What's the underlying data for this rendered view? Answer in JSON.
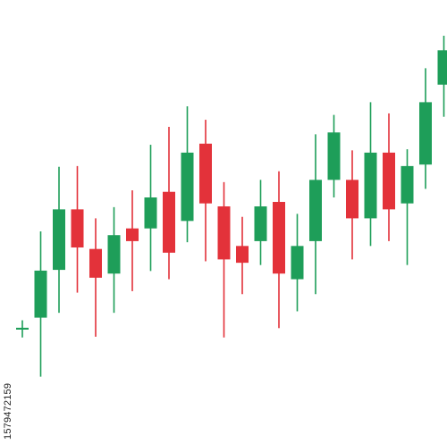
{
  "watermark_text": "1579472159",
  "colors": {
    "up": "#1e9e59",
    "down": "#e3323a",
    "background": "#ffffff"
  },
  "chart_data": {
    "type": "candlestick",
    "title": "",
    "xlabel": "",
    "ylabel": "",
    "ylim": [
      0,
      100
    ],
    "grid": false,
    "legend": "none",
    "candles": [
      {
        "open": 21.3,
        "high": 23.8,
        "low": 19.2,
        "close": 21.8
      },
      {
        "open": 24.5,
        "high": 47.6,
        "low": 8.7,
        "close": 37.1
      },
      {
        "open": 37.3,
        "high": 64.9,
        "low": 25.8,
        "close": 53.5
      },
      {
        "open": 53.5,
        "high": 65.1,
        "low": 31.2,
        "close": 43.3
      },
      {
        "open": 42.9,
        "high": 51.1,
        "low": 19.4,
        "close": 35.2
      },
      {
        "open": 36.3,
        "high": 54.1,
        "low": 25.8,
        "close": 46.6
      },
      {
        "open": 48.4,
        "high": 58.6,
        "low": 31.6,
        "close": 45.0
      },
      {
        "open": 48.4,
        "high": 70.8,
        "low": 37.0,
        "close": 56.7
      },
      {
        "open": 58.2,
        "high": 75.6,
        "low": 34.8,
        "close": 41.9
      },
      {
        "open": 50.4,
        "high": 81.1,
        "low": 44.7,
        "close": 68.7
      },
      {
        "open": 71.1,
        "high": 77.5,
        "low": 39.6,
        "close": 55.1
      },
      {
        "open": 54.3,
        "high": 60.8,
        "low": 19.2,
        "close": 40.1
      },
      {
        "open": 43.7,
        "high": 51.5,
        "low": 30.8,
        "close": 39.2
      },
      {
        "open": 45.0,
        "high": 61.4,
        "low": 38.6,
        "close": 54.3
      },
      {
        "open": 55.5,
        "high": 63.7,
        "low": 21.7,
        "close": 36.3
      },
      {
        "open": 34.8,
        "high": 52.3,
        "low": 26.2,
        "close": 43.7
      },
      {
        "open": 45.0,
        "high": 73.6,
        "low": 30.8,
        "close": 61.4
      },
      {
        "open": 61.4,
        "high": 78.8,
        "low": 56.7,
        "close": 74.1
      },
      {
        "open": 61.4,
        "high": 69.3,
        "low": 40.1,
        "close": 51.1
      },
      {
        "open": 51.1,
        "high": 82.2,
        "low": 43.7,
        "close": 68.7
      },
      {
        "open": 68.7,
        "high": 79.2,
        "low": 45.0,
        "close": 53.5
      },
      {
        "open": 55.1,
        "high": 69.6,
        "low": 38.6,
        "close": 65.1
      },
      {
        "open": 65.5,
        "high": 91.3,
        "low": 59.0,
        "close": 82.2
      },
      {
        "open": 86.9,
        "high": 100.0,
        "low": 78.3,
        "close": 96.1
      }
    ]
  }
}
